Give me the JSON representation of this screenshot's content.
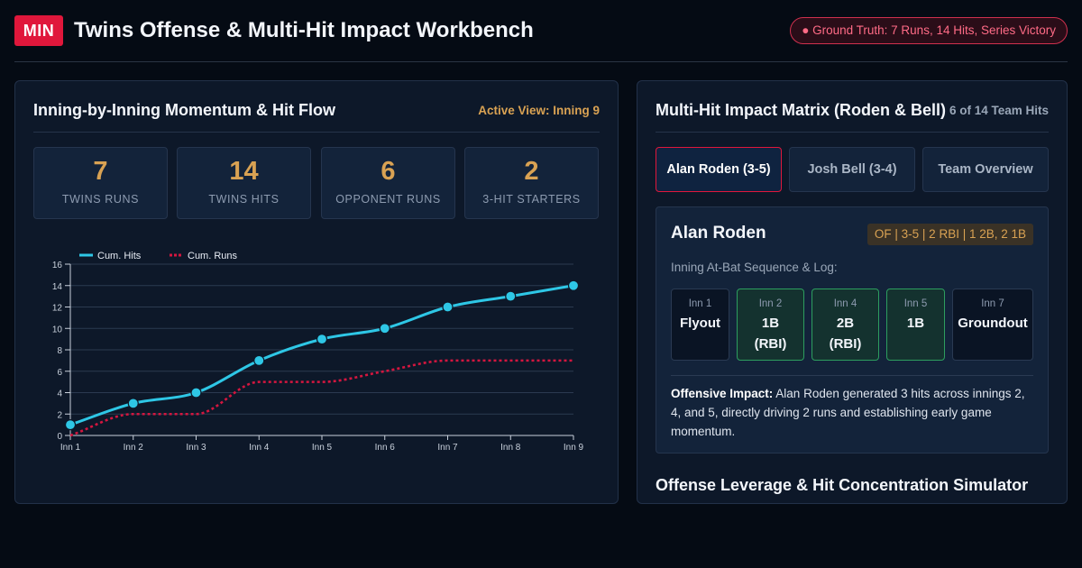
{
  "header": {
    "team_badge": "MIN",
    "title": "Twins Offense & Multi-Hit Impact Workbench",
    "ground_truth": "● Ground Truth: 7 Runs, 14 Hits, Series Victory"
  },
  "left_panel": {
    "title": "Inning-by-Inning Momentum & Hit Flow",
    "active_view": "Active View: Inning 9",
    "stats": [
      {
        "value": "7",
        "label": "TWINS RUNS"
      },
      {
        "value": "14",
        "label": "TWINS HITS"
      },
      {
        "value": "6",
        "label": "OPPONENT RUNS"
      },
      {
        "value": "2",
        "label": "3-HIT STARTERS"
      }
    ]
  },
  "chart_data": {
    "type": "line",
    "categories": [
      "Inn 1",
      "Inn 2",
      "Inn 3",
      "Inn 4",
      "Inn 5",
      "Inn 6",
      "Inn 7",
      "Inn 8",
      "Inn 9"
    ],
    "series": [
      {
        "name": "Cum. Hits",
        "values": [
          1,
          3,
          4,
          7,
          9,
          10,
          12,
          13,
          14
        ],
        "color": "#2ec7e6",
        "style": "solid",
        "markers": true
      },
      {
        "name": "Cum. Runs",
        "values": [
          0,
          2,
          2,
          5,
          5,
          6,
          7,
          7,
          7
        ],
        "color": "#d4163f",
        "style": "dashed",
        "markers": false
      }
    ],
    "yticks": [
      "0",
      "2",
      "4",
      "6",
      "8",
      "10",
      "12",
      "14",
      "16"
    ],
    "ylim": [
      0,
      16
    ],
    "grid": true,
    "legend": "top-left"
  },
  "right_panel": {
    "title": "Multi-Hit Impact Matrix (Roden & Bell)",
    "hits_count": "6 of 14 Team Hits",
    "tabs": [
      {
        "label": "Alan Roden (3-5)",
        "active": true
      },
      {
        "label": "Josh Bell (3-4)",
        "active": false
      },
      {
        "label": "Team Overview",
        "active": false
      }
    ],
    "player": {
      "name": "Alan Roden",
      "line": "OF | 3-5 | 2 RBI | 1 2B, 2 1B",
      "sequence_label": "Inning At-Bat Sequence & Log:",
      "at_bats": [
        {
          "inning": "Inn 1",
          "result": "Flyout",
          "hit": false
        },
        {
          "inning": "Inn 2",
          "result": "1B",
          "note": "(RBI)",
          "hit": true
        },
        {
          "inning": "Inn 4",
          "result": "2B",
          "note": "(RBI)",
          "hit": true
        },
        {
          "inning": "Inn 5",
          "result": "1B",
          "hit": true
        },
        {
          "inning": "Inn 7",
          "result": "Groundout",
          "hit": false
        }
      ],
      "impact_label": "Offensive Impact:",
      "impact_text": "Alan Roden generated 3 hits across innings 2, 4, and 5, directly driving 2 runs and establishing early game momentum."
    },
    "simulator_title": "Offense Leverage & Hit Concentration Simulator"
  }
}
